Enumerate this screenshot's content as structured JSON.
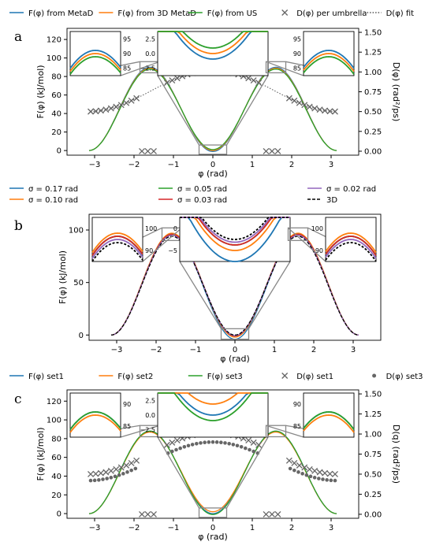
{
  "colors": {
    "blue": "#1f77b4",
    "orange": "#ff7f0e",
    "green": "#2ca02c",
    "red": "#d62728",
    "purple": "#9467bd",
    "gray": "#666666",
    "inset": "#888888"
  },
  "chart_data": [
    {
      "panel": "a",
      "type": "line",
      "xlabel": "φ (rad)",
      "ylabel": "F(φ) (kJ/mol)",
      "ylabel2": "D(φ) (rad²/ps)",
      "xlim": [
        -3.7,
        3.7
      ],
      "ylim": [
        -5,
        132
      ],
      "ylim2": [
        -0.05,
        1.55
      ],
      "xticks": [
        "−3",
        "−2",
        "−1",
        "0",
        "1",
        "2",
        "3"
      ],
      "yticks": [
        "0",
        "20",
        "40",
        "60",
        "80",
        "100",
        "120"
      ],
      "yticks2": [
        "0.00",
        "0.25",
        "0.50",
        "0.75",
        "1.00",
        "1.25",
        "1.50"
      ],
      "legend": [
        "F(φ) from MetaD",
        "F(φ) from 3D MetaD",
        "F(φ) from US",
        "D(φ) per umbrella",
        "D(φ) fit"
      ],
      "series": [
        {
          "name": "F(φ) from MetaD",
          "color": "blue",
          "peak": 90,
          "well": -1
        },
        {
          "name": "F(φ) from 3D MetaD",
          "color": "orange",
          "peak": 89,
          "well": 0
        },
        {
          "name": "F(φ) from US",
          "color": "green",
          "peak": 88,
          "well": 1
        }
      ],
      "diffusion": {
        "min": 0.5,
        "max": 1.02
      },
      "x_markers": [
        -1.8,
        -1.65,
        -1.5,
        1.35,
        1.5,
        1.65
      ],
      "insets": {
        "left": {
          "yticks": [
            "85",
            "90",
            "95"
          ]
        },
        "center": {
          "yticks": [
            "−2.5",
            "0.0",
            "2.5"
          ]
        },
        "right": {
          "yticks": [
            "85",
            "90",
            "95"
          ]
        }
      }
    },
    {
      "panel": "b",
      "type": "line",
      "xlabel": "φ (rad)",
      "ylabel": "F(φ) (kJ/mol)",
      "xlim": [
        -3.7,
        3.7
      ],
      "ylim": [
        -5,
        115
      ],
      "xticks": [
        "−3",
        "−2",
        "−1",
        "0",
        "1",
        "2",
        "3"
      ],
      "yticks": [
        "0",
        "50",
        "100"
      ],
      "legend": [
        "σ = 0.17 rad",
        "σ = 0.05 rad",
        "σ = 0.02 rad",
        "σ = 0.10 rad",
        "σ = 0.03 rad",
        "3D"
      ],
      "series": [
        {
          "name": "σ = 0.17 rad",
          "color": "blue",
          "peak": 96,
          "well": -4
        },
        {
          "name": "σ = 0.10 rad",
          "color": "orange",
          "peak": 97,
          "well": -2
        },
        {
          "name": "σ = 0.05 rad",
          "color": "green",
          "peak": 96,
          "well": -1
        },
        {
          "name": "σ = 0.03 rad",
          "color": "red",
          "peak": 96,
          "well": -1
        },
        {
          "name": "σ = 0.02 rad",
          "color": "purple",
          "peak": 95,
          "well": -0.5
        },
        {
          "name": "3D",
          "color": "black",
          "peak": 94,
          "well": 0
        }
      ],
      "insets": {
        "left": {
          "yticks": [
            "90",
            "100"
          ]
        },
        "center": {
          "yticks": [
            "−5",
            "0"
          ]
        },
        "right": {
          "yticks": [
            "90",
            "100"
          ]
        }
      }
    },
    {
      "panel": "c",
      "type": "line",
      "xlabel": "φ (rad)",
      "ylabel": "F(φ) (kJ/mol)",
      "ylabel2": "D(q) (rad²/ps)",
      "xlim": [
        -3.7,
        3.7
      ],
      "ylim": [
        -5,
        132
      ],
      "ylim2": [
        -0.05,
        1.55
      ],
      "xticks": [
        "−3",
        "−2",
        "−1",
        "0",
        "1",
        "2",
        "3"
      ],
      "yticks": [
        "0",
        "20",
        "40",
        "60",
        "80",
        "100",
        "120"
      ],
      "yticks2": [
        "0.00",
        "0.25",
        "0.50",
        "0.75",
        "1.00",
        "1.25",
        "1.50"
      ],
      "legend": [
        "F(φ) set1",
        "F(φ) set2",
        "F(φ) set3",
        "D(φ) set1",
        "D(φ) set3"
      ],
      "series": [
        {
          "name": "F(φ) set1",
          "color": "blue",
          "peak": 88,
          "well": 0
        },
        {
          "name": "F(φ) set2",
          "color": "orange",
          "peak": 87,
          "well": 2
        },
        {
          "name": "F(φ) set3",
          "color": "green",
          "peak": 88,
          "well": -1
        }
      ],
      "diffusion_set1": {
        "min": 0.5,
        "max": 1.02
      },
      "diffusion_set3": {
        "min": 0.42,
        "max": 0.9
      },
      "x_markers": [
        -1.8,
        -1.65,
        -1.5,
        1.35,
        1.5,
        1.65
      ],
      "insets": {
        "left": {
          "yticks": [
            "85",
            "90"
          ]
        },
        "center": {
          "yticks": [
            "−2.5",
            "0.0",
            "2.5"
          ]
        },
        "right": {
          "yticks": [
            "85",
            "90"
          ]
        }
      }
    }
  ],
  "panel_labels": [
    "a",
    "b",
    "c"
  ]
}
